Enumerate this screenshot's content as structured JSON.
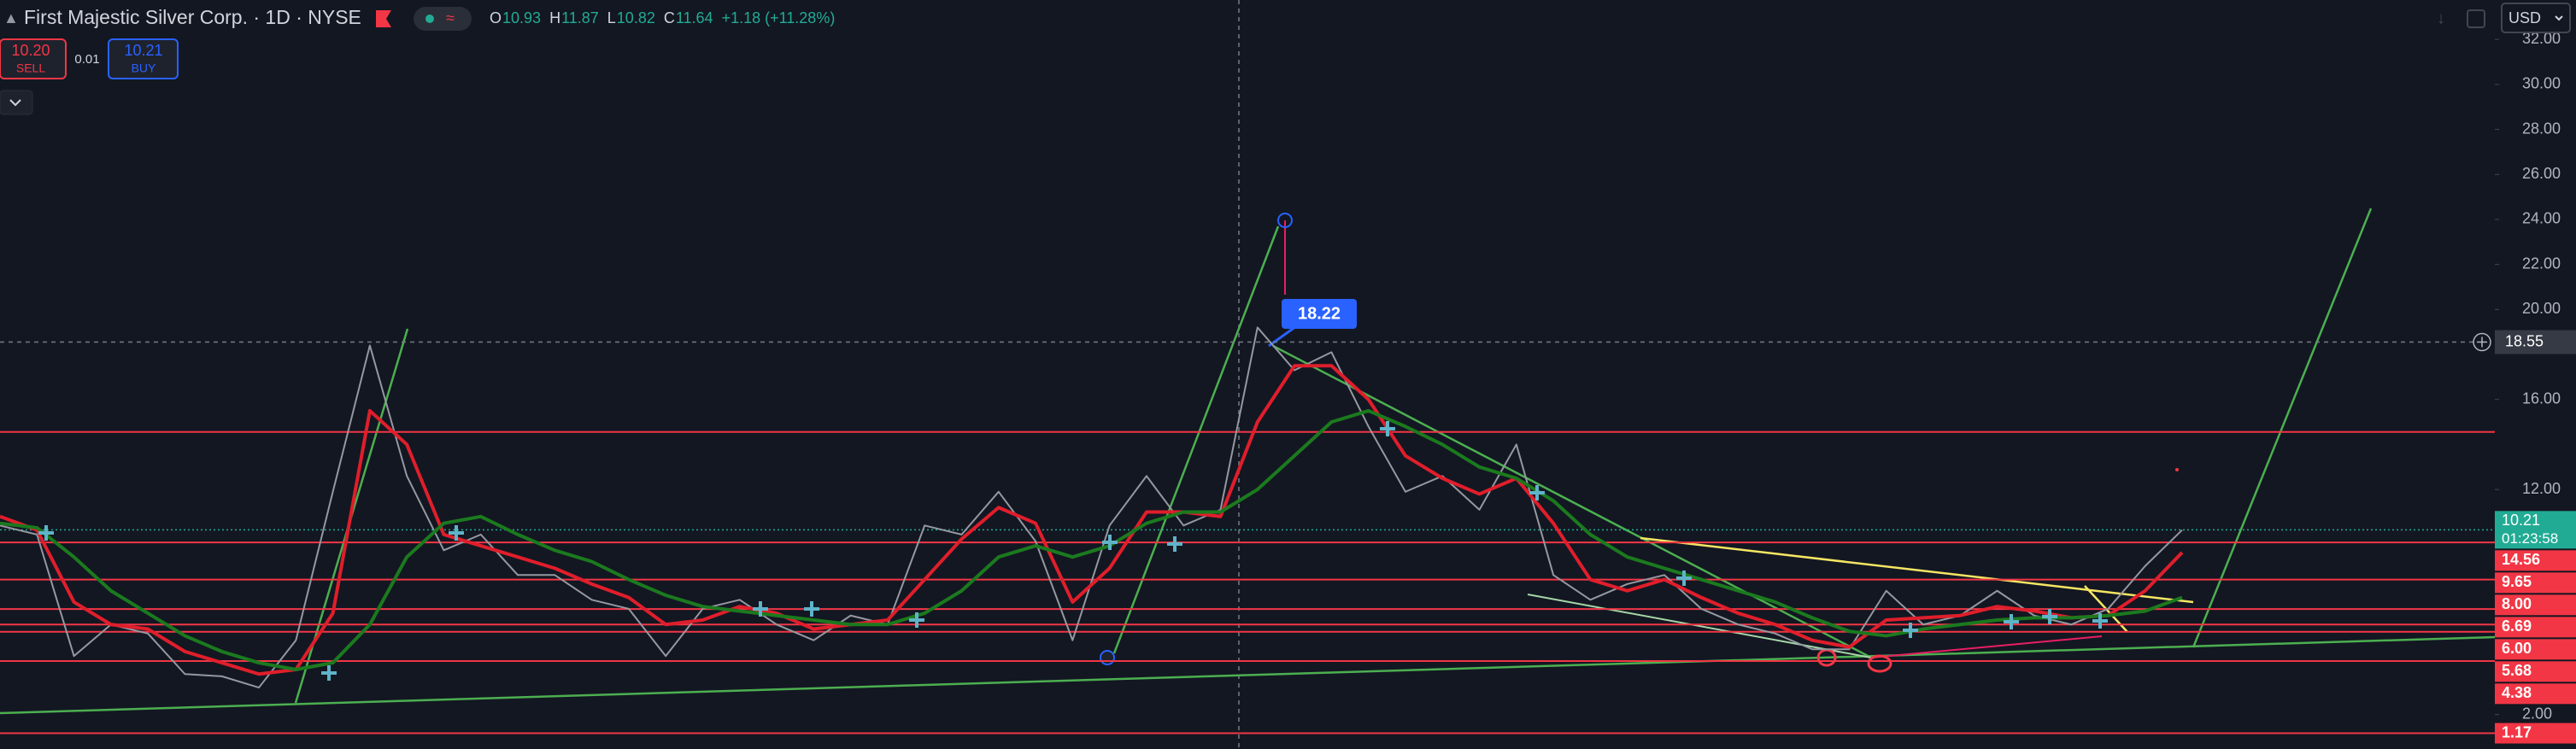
{
  "header": {
    "title": "First Majestic Silver Corp. · 1D · NYSE",
    "ohlc": [
      {
        "label": "O",
        "value": "10.93"
      },
      {
        "label": "H",
        "value": "11.87"
      },
      {
        "label": "L",
        "value": "10.82"
      },
      {
        "label": "C",
        "value": "11.64"
      }
    ],
    "change": "+1.18 (+11.28%)",
    "sell": {
      "price": "10.20",
      "label": "SELL"
    },
    "spread": "0.01",
    "buy": {
      "price": "10.21",
      "label": "BUY"
    },
    "currency": "USD"
  },
  "chart_data": {
    "type": "line",
    "series": [
      {
        "color": "#9598a1",
        "values": [
          10.4,
          10.0,
          4.6,
          6.0,
          5.6,
          3.8,
          3.7,
          3.2,
          5.3,
          11.9,
          18.4,
          12.6,
          9.3,
          10.0,
          8.2,
          8.2,
          7.1,
          6.7,
          4.6,
          6.7,
          7.1,
          6.0,
          5.3,
          6.4,
          6.0,
          10.4,
          10.0,
          11.9,
          9.7,
          5.3,
          10.4,
          12.6,
          10.4,
          11.1,
          19.2,
          17.3,
          18.1,
          14.8,
          11.9,
          12.6,
          11.1,
          14.0,
          8.2,
          7.1,
          7.8,
          8.2,
          6.7,
          6.0,
          5.6,
          4.9,
          4.9,
          7.5,
          6.0,
          6.4,
          7.5,
          6.4,
          6.0,
          6.7,
          8.6,
          10.2
        ]
      },
      {
        "color": "#e01e2b",
        "values": [
          10.8,
          10.2,
          7,
          6,
          5.8,
          4.8,
          4.3,
          3.8,
          4,
          6.5,
          15.5,
          14,
          10,
          9.5,
          9,
          8.5,
          7.8,
          7.2,
          6,
          6.2,
          6.8,
          6.5,
          5.8,
          6,
          6.2,
          8,
          9.8,
          11.2,
          10.5,
          7,
          8.5,
          11,
          11,
          10.8,
          15,
          17.5,
          17.5,
          16,
          13.5,
          12.5,
          11.8,
          12.5,
          10.5,
          8,
          7.5,
          8,
          7.2,
          6.5,
          6,
          5.3,
          5,
          6.2,
          6.3,
          6.4,
          6.8,
          6.6,
          6.3,
          6.4,
          7.5,
          9.2
        ]
      },
      {
        "color": "#1b7a1e",
        "values": [
          10.5,
          10.3,
          9,
          7.5,
          6.5,
          5.5,
          4.8,
          4.3,
          4,
          4.3,
          6,
          9,
          10.5,
          10.8,
          10,
          9.3,
          8.8,
          8,
          7.3,
          6.8,
          6.6,
          6.4,
          6.2,
          6,
          6,
          6.5,
          7.5,
          9,
          9.5,
          9,
          9.5,
          10.5,
          11,
          11,
          12,
          13.5,
          15,
          15.5,
          14.8,
          14,
          13,
          12.5,
          11.5,
          10,
          9,
          8.5,
          8,
          7.5,
          7,
          6.3,
          5.7,
          5.5,
          5.8,
          6,
          6.2,
          6.3,
          6.3,
          6.4,
          6.6,
          7.2
        ]
      }
    ],
    "ylim": [
      0.47,
      33.75
    ],
    "yticks": [
      {
        "value": 2,
        "label": "2.00"
      },
      {
        "value": 12,
        "label": "12.00"
      },
      {
        "value": 16,
        "label": "16.00"
      },
      {
        "value": 20,
        "label": "20.00"
      },
      {
        "value": 22,
        "label": "22.00"
      },
      {
        "value": 24,
        "label": "24.00"
      },
      {
        "value": 26,
        "label": "26.00"
      },
      {
        "value": 28,
        "label": "28.00"
      },
      {
        "value": 30,
        "label": "30.00"
      },
      {
        "value": 32,
        "label": "32.00"
      }
    ],
    "hlines": [
      {
        "value": 14.56,
        "label": "14.56"
      },
      {
        "value": 9.65,
        "label": "9.65"
      },
      {
        "value": 8.0,
        "label": "8.00"
      },
      {
        "value": 6.69,
        "label": "6.69"
      },
      {
        "value": 6.0,
        "label": "6.00"
      },
      {
        "value": 5.68,
        "label": "5.68"
      },
      {
        "value": 4.38,
        "label": "4.38"
      },
      {
        "value": 1.17,
        "label": "1.17"
      }
    ],
    "hline_color": "#f23645",
    "last_price": {
      "value": 10.21,
      "label": "10.21",
      "countdown": "01:23:58",
      "color": "#22ab94"
    },
    "crosshair": {
      "value": 18.55,
      "label": "18.55"
    },
    "annotation": "18.22"
  }
}
